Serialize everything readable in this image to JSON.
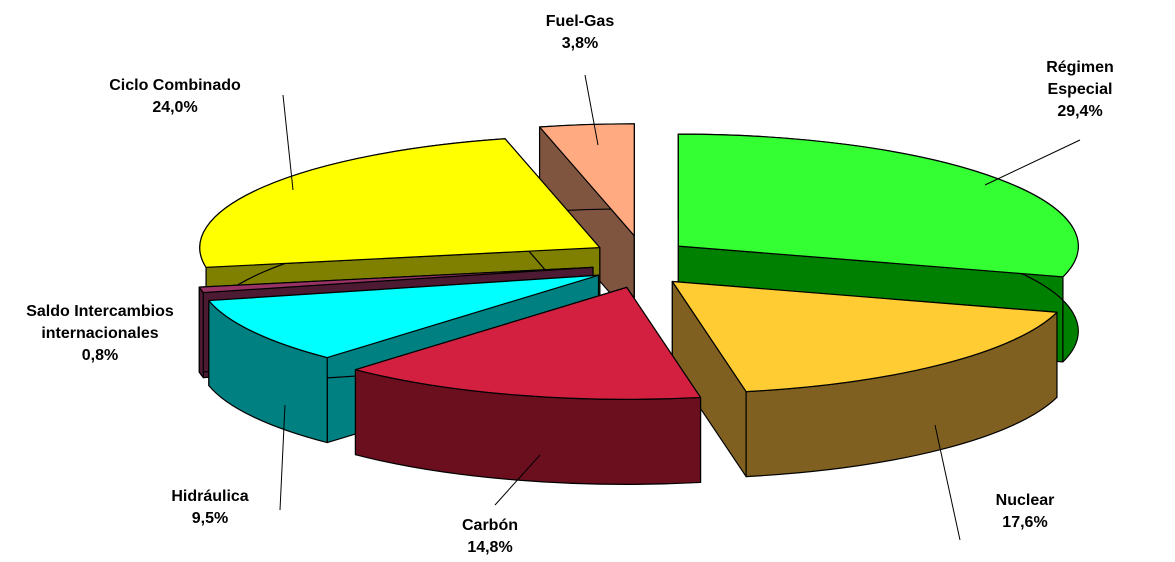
{
  "chart_data": {
    "type": "pie3d",
    "categories": [
      "Régimen Especial",
      "Nuclear",
      "Carbón",
      "Hidráulica",
      "Saldo Intercambios internacionales",
      "Ciclo Combinado",
      "Fuel-Gas"
    ],
    "values": [
      29.4,
      17.6,
      14.8,
      9.5,
      0.8,
      24.0,
      3.8
    ],
    "value_labels": [
      "29,4%",
      "17,6%",
      "14,8%",
      "9,5%",
      "0,8%",
      "24,0%",
      "3,8%"
    ],
    "colors": [
      "#33ff33",
      "#ffcc33",
      "#d42040",
      "#00ffff",
      "#993366",
      "#ffff00",
      "#ffaa80"
    ],
    "side_colors": [
      "#008000",
      "#806020",
      "#6b0f1f",
      "#008080",
      "#4d1a33",
      "#808000",
      "#805540"
    ]
  }
}
